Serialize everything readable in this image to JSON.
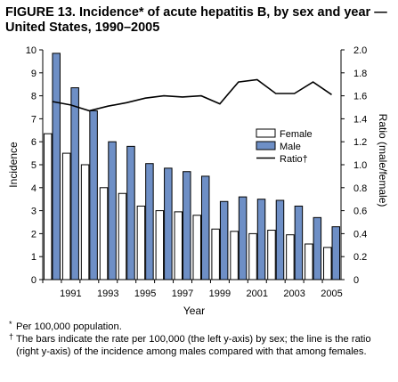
{
  "figure": {
    "title": "FIGURE 13. Incidence* of acute hepatitis B, by sex and year — United States, 1990–2005",
    "footnotes": [
      {
        "mark": "*",
        "text": "Per 100,000 population."
      },
      {
        "mark": "†",
        "text": "The bars indicate the rate per 100,000 (the left y-axis) by sex; the line is the ratio (right y-axis) of the incidence among males compared with that among females."
      }
    ]
  },
  "chart_data": {
    "type": "bar",
    "title": "FIGURE 13. Incidence* of acute hepatitis B, by sex and year — United States, 1990–2005",
    "xlabel": "Year",
    "ylabel": "Incidence",
    "y2label": "Ratio (male/female)",
    "x": [
      1990,
      1991,
      1992,
      1993,
      1994,
      1995,
      1996,
      1997,
      1998,
      1999,
      2000,
      2001,
      2002,
      2003,
      2004,
      2005
    ],
    "xtick_labels": [
      "1991",
      "1993",
      "1995",
      "1997",
      "1999",
      "2001",
      "2003",
      "2005"
    ],
    "ylim": [
      0,
      10
    ],
    "yticks": [
      "0",
      "1",
      "2",
      "3",
      "4",
      "5",
      "6",
      "7",
      "8",
      "9",
      "10"
    ],
    "y2lim": [
      0,
      2.0
    ],
    "y2ticks": [
      "0",
      "0.2",
      "0.4",
      "0.6",
      "0.8",
      "1.0",
      "1.2",
      "1.4",
      "1.6",
      "1.8",
      "2.0"
    ],
    "grid": false,
    "legend_position": "right",
    "series": [
      {
        "name": "Female",
        "kind": "bar",
        "axis": "left",
        "color": "#ffffff",
        "values": [
          6.35,
          5.5,
          5.0,
          4.0,
          3.75,
          3.2,
          3.0,
          2.95,
          2.8,
          2.2,
          2.1,
          2.0,
          2.15,
          1.95,
          1.55,
          1.4
        ]
      },
      {
        "name": "Male",
        "kind": "bar",
        "axis": "left",
        "color": "#6e8fc6",
        "values": [
          9.85,
          8.35,
          7.35,
          6.0,
          5.8,
          5.05,
          4.85,
          4.7,
          4.5,
          3.4,
          3.6,
          3.5,
          3.45,
          3.2,
          2.7,
          2.3
        ]
      },
      {
        "name": "Ratio†",
        "kind": "line",
        "axis": "right",
        "color": "#000000",
        "values": [
          1.55,
          1.52,
          1.47,
          1.51,
          1.54,
          1.58,
          1.6,
          1.59,
          1.6,
          1.53,
          1.72,
          1.74,
          1.62,
          1.62,
          1.72,
          1.61
        ]
      }
    ]
  }
}
